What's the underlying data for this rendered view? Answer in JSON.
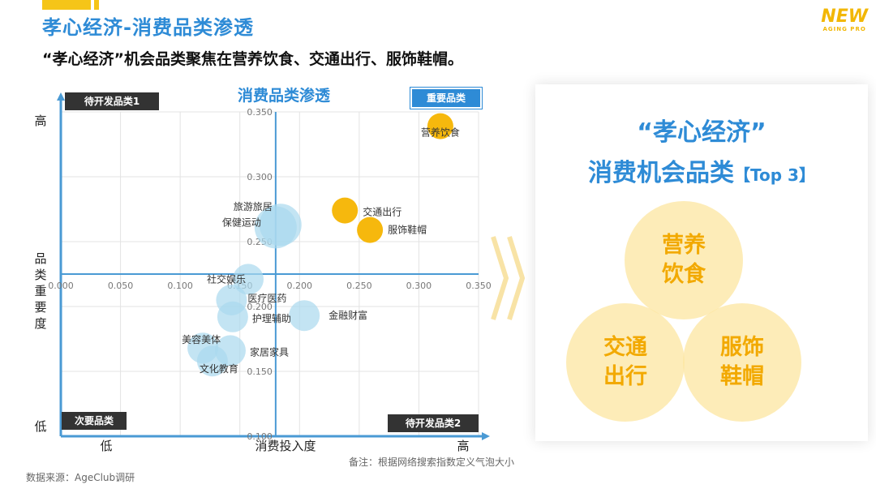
{
  "header": {
    "title": "孝心经济-消费品类渗透",
    "subtitle": "“孝心经济”机会品类聚焦在营养饮食、交通出行、服饰鞋帽。",
    "logo_line1": "NEW",
    "logo_line2": "AGING PRO"
  },
  "chart_data": {
    "type": "scatter",
    "subtype": "bubble",
    "title": "消费品类渗透",
    "xlabel": "消费投入度",
    "ylabel": "品类重要度",
    "x_low_label": "低",
    "x_high_label": "高",
    "y_low_label": "低",
    "y_high_label": "高",
    "xlim": [
      0.0,
      0.35
    ],
    "ylim": [
      0.1,
      0.35
    ],
    "x_ticks": [
      "0.000",
      "0.050",
      "0.100",
      "0.150",
      "0.200",
      "0.250",
      "0.300",
      "0.350"
    ],
    "y_ticks": [
      "0.100",
      "0.150",
      "0.200",
      "0.250",
      "0.300",
      "0.350"
    ],
    "grid": true,
    "quadrant_labels": {
      "top_left": "待开发品类1",
      "top_right": "重要品类",
      "bottom_left": "次要品类",
      "bottom_right": "待开发品类2"
    },
    "points": [
      {
        "label": "营养饮食",
        "x": 0.318,
        "y": 0.339,
        "highlight": true
      },
      {
        "label": "交通出行",
        "x": 0.238,
        "y": 0.274,
        "highlight": true
      },
      {
        "label": "服饰鞋帽",
        "x": 0.259,
        "y": 0.259,
        "highlight": true
      },
      {
        "label": "旅游旅居",
        "x": 0.184,
        "y": 0.263,
        "highlight": false
      },
      {
        "label": "保健运动",
        "x": 0.18,
        "y": 0.261,
        "highlight": false
      },
      {
        "label": "社交娱乐",
        "x": 0.157,
        "y": 0.221,
        "highlight": false
      },
      {
        "label": "医疗医药",
        "x": 0.143,
        "y": 0.205,
        "highlight": false
      },
      {
        "label": "护理辅助",
        "x": 0.144,
        "y": 0.192,
        "highlight": false
      },
      {
        "label": "金融财富",
        "x": 0.204,
        "y": 0.193,
        "highlight": false
      },
      {
        "label": "美容美体",
        "x": 0.119,
        "y": 0.168,
        "highlight": false
      },
      {
        "label": "家居家具",
        "x": 0.142,
        "y": 0.166,
        "highlight": false
      },
      {
        "label": "文化教育",
        "x": 0.127,
        "y": 0.158,
        "highlight": false
      }
    ],
    "colors": {
      "highlight": "#f5b400",
      "normal": "#a9d9ee",
      "axis": "#4a9ad4",
      "quadrant_dark": "#333333",
      "quadrant_blue": "#2e8bd6"
    }
  },
  "note": "备注：根据网络搜索指数定义气泡大小",
  "source": "数据来源：AgeClub调研",
  "panel": {
    "title_line1": "“孝心经济”",
    "title_line2": "消费机会品类",
    "title_tag": "【Top 3】",
    "top3": [
      "营养饮食",
      "交通出行",
      "服饰鞋帽"
    ]
  }
}
